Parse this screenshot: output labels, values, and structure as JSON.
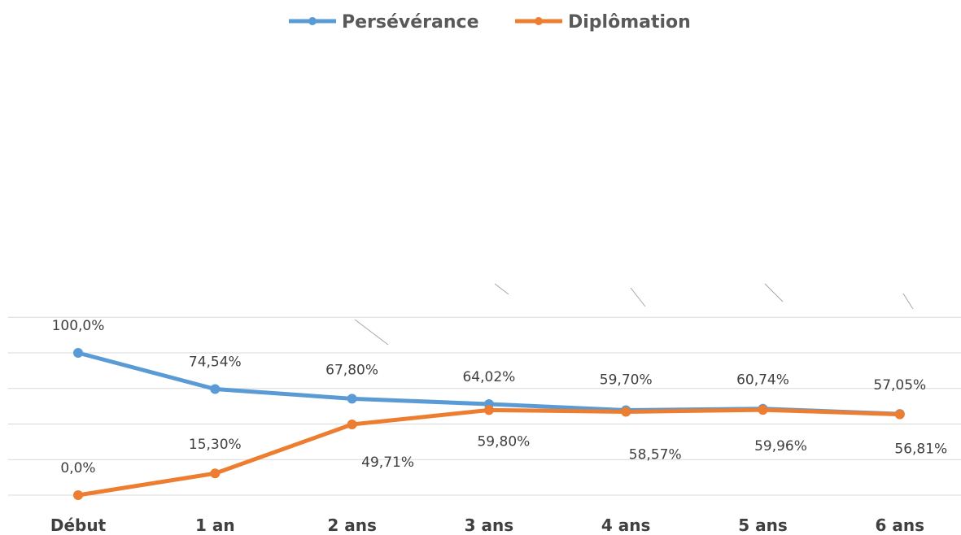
{
  "chart_data": {
    "type": "line",
    "categories": [
      "Début",
      "1 an",
      "2 ans",
      "3 ans",
      "4 ans",
      "5 ans",
      "6 ans"
    ],
    "ylim": [
      0,
      125
    ],
    "y_gridlines": [
      0,
      25,
      50,
      75,
      100,
      125
    ],
    "grid": true,
    "y_axis_labels_shown": false,
    "legend_position": "top",
    "series": [
      {
        "name": "Persévérance",
        "color": "#5b9bd5",
        "values": [
          100.0,
          74.54,
          67.8,
          64.02,
          59.7,
          60.74,
          57.05
        ],
        "labels": [
          "100,0%",
          "74,54%",
          "67,80%",
          "64,02%",
          "59,70%",
          "60,74%",
          "57,05%"
        ]
      },
      {
        "name": "Diplômation",
        "color": "#ed7d31",
        "values": [
          0.0,
          15.3,
          49.71,
          59.8,
          58.57,
          59.96,
          56.81
        ],
        "labels": [
          "0,0%",
          "15,30%",
          "49,71%",
          "59,80%",
          "58,57%",
          "59,96%",
          "56,81%"
        ]
      }
    ]
  }
}
